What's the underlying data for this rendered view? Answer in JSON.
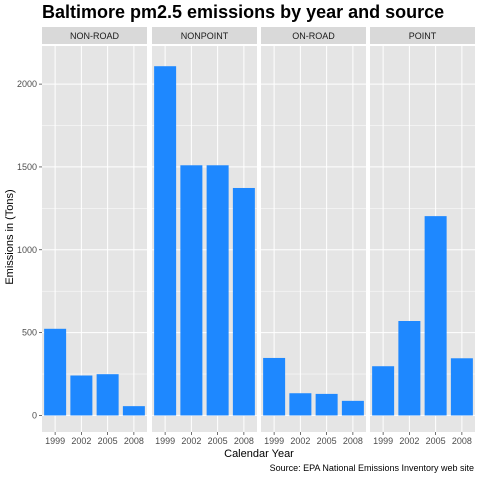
{
  "chart_data": {
    "type": "bar",
    "title": "Baltimore pm2.5 emissions by year and source",
    "xlabel": "Calendar Year",
    "ylabel": "Emissions in (Tons)",
    "caption": "Source: EPA National Emissions Inventory web site",
    "categories": [
      "1999",
      "2002",
      "2005",
      "2008"
    ],
    "ylim": [
      -100,
      2230
    ],
    "yticks": [
      0,
      500,
      1000,
      1500,
      2000
    ],
    "grid": true,
    "facets": [
      {
        "name": "NON-ROAD",
        "values": [
          523,
          241,
          249,
          56
        ]
      },
      {
        "name": "NONPOINT",
        "values": [
          2108,
          1510,
          1510,
          1373
        ]
      },
      {
        "name": "ON-ROAD",
        "values": [
          347,
          134,
          130,
          88
        ]
      },
      {
        "name": "POINT",
        "values": [
          297,
          570,
          1203,
          345
        ]
      }
    ],
    "bar_color": "#1e88ff",
    "panel_background": "#e5e5e5",
    "strip_background": "#d9d9d9",
    "gridline_color": "#ffffff"
  }
}
